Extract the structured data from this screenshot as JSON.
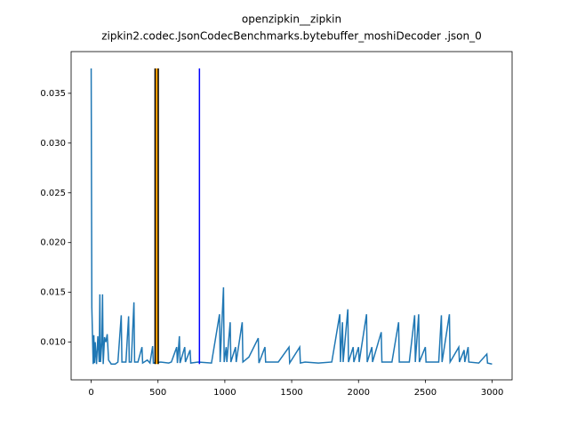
{
  "chart_data": {
    "type": "line",
    "title": "openzipkin__zipkin",
    "subtitle": "zipkin2.codec.JsonCodecBenchmarks.bytebuffer_moshiDecoder .json_0",
    "xlim": [
      -150,
      3149
    ],
    "ylim": [
      0.00621,
      0.03919
    ],
    "xticks": [
      0,
      500,
      1000,
      1500,
      2000,
      2500,
      3000
    ],
    "yticks": [
      {
        "value": 0.01,
        "label": "0.010"
      },
      {
        "value": 0.015,
        "label": "0.015"
      },
      {
        "value": 0.02,
        "label": "0.020"
      },
      {
        "value": 0.025,
        "label": "0.025"
      },
      {
        "value": 0.03,
        "label": "0.030"
      },
      {
        "value": 0.035,
        "label": "0.035"
      }
    ],
    "series": [
      {
        "color": "#1f77b4",
        "x": [
          0,
          5,
          10,
          15,
          20,
          25,
          30,
          40,
          50,
          60,
          65,
          70,
          80,
          85,
          90,
          100,
          110,
          120,
          130,
          140,
          150,
          180,
          200,
          225,
          230,
          260,
          280,
          285,
          300,
          320,
          325,
          350,
          380,
          385,
          420,
          440,
          460,
          465,
          520,
          580,
          600,
          640,
          645,
          660,
          665,
          700,
          705,
          740,
          745,
          800,
          900,
          960,
          965,
          990,
          995,
          1010,
          1015,
          1040,
          1045,
          1080,
          1085,
          1130,
          1135,
          1180,
          1250,
          1255,
          1300,
          1305,
          1400,
          1480,
          1485,
          1560,
          1565,
          1600,
          1700,
          1800,
          1860,
          1865,
          1880,
          1885,
          1920,
          1925,
          1960,
          1965,
          2000,
          2005,
          2060,
          2065,
          2100,
          2105,
          2170,
          2175,
          2250,
          2300,
          2305,
          2380,
          2420,
          2425,
          2450,
          2455,
          2500,
          2505,
          2600,
          2620,
          2625,
          2680,
          2685,
          2750,
          2755,
          2790,
          2795,
          2820,
          2825,
          2900,
          2960,
          2965,
          2999
        ],
        "values": [
          0.0375,
          0.0135,
          0.0105,
          0.0078,
          0.0107,
          0.0079,
          0.01,
          0.0078,
          0.0106,
          0.008,
          0.0148,
          0.008,
          0.01,
          0.0148,
          0.0078,
          0.0105,
          0.01,
          0.0108,
          0.0082,
          0.008,
          0.0078,
          0.0078,
          0.008,
          0.0127,
          0.008,
          0.008,
          0.0126,
          0.008,
          0.008,
          0.014,
          0.008,
          0.008,
          0.0095,
          0.0079,
          0.0082,
          0.0079,
          0.0096,
          0.0079,
          0.008,
          0.0079,
          0.008,
          0.0095,
          0.0079,
          0.0106,
          0.0079,
          0.0095,
          0.008,
          0.0092,
          0.0079,
          0.008,
          0.0079,
          0.0128,
          0.008,
          0.0155,
          0.008,
          0.0095,
          0.008,
          0.012,
          0.008,
          0.0095,
          0.008,
          0.012,
          0.008,
          0.0085,
          0.0104,
          0.0079,
          0.0095,
          0.008,
          0.008,
          0.0095,
          0.0079,
          0.0095,
          0.0079,
          0.008,
          0.0079,
          0.008,
          0.0128,
          0.008,
          0.012,
          0.008,
          0.0133,
          0.008,
          0.0095,
          0.008,
          0.0095,
          0.008,
          0.0128,
          0.008,
          0.0095,
          0.008,
          0.011,
          0.008,
          0.008,
          0.012,
          0.008,
          0.008,
          0.0127,
          0.008,
          0.0128,
          0.008,
          0.0095,
          0.008,
          0.008,
          0.0127,
          0.008,
          0.0128,
          0.008,
          0.0095,
          0.008,
          0.0092,
          0.008,
          0.0095,
          0.008,
          0.0079,
          0.0088,
          0.0079,
          0.0078
        ]
      }
    ],
    "spans": [
      {
        "x0": 480,
        "x1": 500,
        "color": "orange"
      }
    ],
    "vlines": [
      {
        "x": 478,
        "color": "black"
      },
      {
        "x": 502,
        "color": "black"
      },
      {
        "x": 810,
        "color": "blue"
      }
    ]
  }
}
